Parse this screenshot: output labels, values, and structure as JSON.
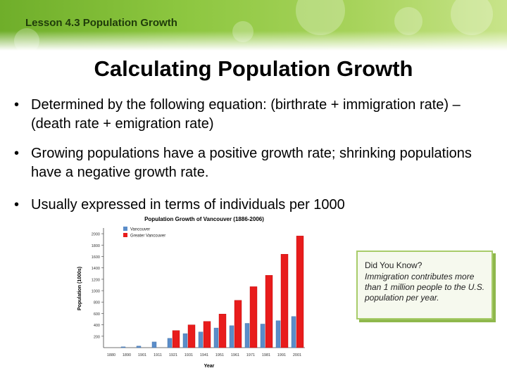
{
  "header": {
    "lesson_label": "Lesson 4.3 Population Growth"
  },
  "slide": {
    "title": "Calculating Population Growth",
    "bullets": [
      {
        "text": "Determined by the following equation: (birthrate + immigration rate) – (death rate + emigration rate)"
      },
      {
        "text": "Growing populations have a positive growth rate; shrinking populations have a negative growth rate."
      },
      {
        "text": "Usually expressed in terms of individuals per 1000"
      }
    ],
    "bullet_symbol": "•"
  },
  "callout": {
    "title": "Did You Know?",
    "body": "Immigration contributes more than 1 million people to the U.S. population per year."
  },
  "colors": {
    "header_green": "#8cc63f",
    "vancouver": "#5b8dc9",
    "greater_vancouver": "#e81c1c",
    "callout_border": "#a8cc6a"
  },
  "chart_data": {
    "type": "bar",
    "title": "Population Growth of Vancouver (1886-2006)",
    "xlabel": "Year",
    "ylabel": "Population (1000s)",
    "categories": [
      "1880",
      "1890",
      "1901",
      "1911",
      "1921",
      "1931",
      "1941",
      "1951",
      "1961",
      "1971",
      "1981",
      "1991",
      "2001"
    ],
    "series": [
      {
        "name": "Vancouver",
        "values": [
          0,
          14,
          27,
          100,
          163,
          246,
          275,
          345,
          385,
          426,
          414,
          472,
          546
        ]
      },
      {
        "name": "Greater Vancouver",
        "values": [
          0,
          0,
          0,
          0,
          300,
          400,
          460,
          590,
          830,
          1070,
          1270,
          1640,
          1960
        ]
      }
    ],
    "yticks": [
      "200",
      "400",
      "600",
      "800",
      "1000",
      "1200",
      "1400",
      "1600",
      "1800",
      "2000"
    ],
    "ylim": [
      0,
      2100
    ],
    "legend": "top-left"
  }
}
